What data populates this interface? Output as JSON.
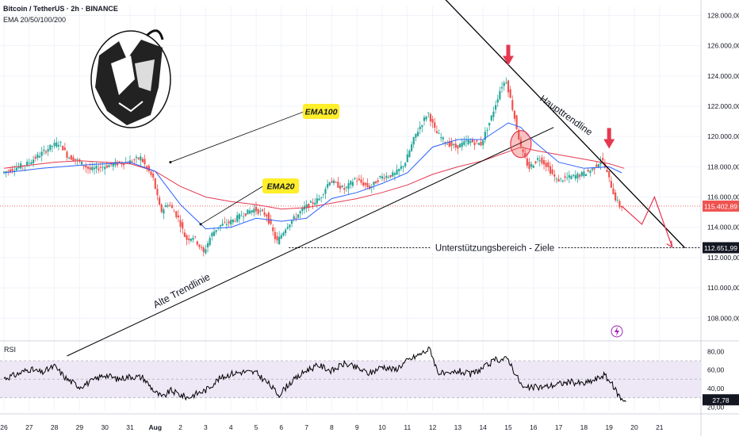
{
  "header": {
    "symbol": "Bitcoin / TetherUS · 2h · BINANCE",
    "indicators": "EMA 20/50/100/200"
  },
  "annotations": {
    "ema100_label": "EMA100",
    "ema20_label": "EMA20",
    "main_trendline": "Haupttrendline",
    "old_trendline": "Alte Trendlinie",
    "support_zone": "Unterstützungsbereich - Ziele"
  },
  "price_tags": {
    "current": "115.402,89",
    "target": "112.651,99"
  },
  "rsi": {
    "label": "RSI",
    "current": "27,78",
    "y_ticks": [
      "80,00",
      "60,00",
      "40,00",
      "20,00"
    ]
  },
  "colors": {
    "up_candle": "#26a69a",
    "down_candle": "#ef5350",
    "ema20": "#2962ff",
    "ema100": "#e53950",
    "arrow": "#e53950",
    "label_bg": "#ffee2a",
    "rsi_line": "#000000",
    "rsi_band": "#ede7f6"
  },
  "chart_data": {
    "type": "candlestick",
    "x_ticks": [
      "26",
      "27",
      "28",
      "29",
      "30",
      "31",
      "Aug",
      "2",
      "3",
      "4",
      "5",
      "6",
      "7",
      "8",
      "9",
      "10",
      "11",
      "12",
      "13",
      "14",
      "15",
      "16",
      "17",
      "18",
      "19",
      "20",
      "21"
    ],
    "y_ticks": [
      "128.000,00",
      "126.000,00",
      "124.000,00",
      "122.000,00",
      "120.000,00",
      "118.000,00",
      "116.000,00",
      "114.000,00",
      "112.000,00",
      "110.000,00",
      "108.000,00"
    ],
    "ylim": [
      106600,
      128600
    ],
    "xlim_days": [
      -0.2,
      27.0
    ],
    "price_anchors": [
      [
        0.0,
        117600
      ],
      [
        0.5,
        117900
      ],
      [
        1.0,
        118200
      ],
      [
        1.5,
        118800
      ],
      [
        2.0,
        119400
      ],
      [
        2.3,
        119600
      ],
      [
        2.6,
        118700
      ],
      [
        3.0,
        118400
      ],
      [
        3.5,
        117800
      ],
      [
        4.0,
        118000
      ],
      [
        4.5,
        118200
      ],
      [
        5.0,
        118300
      ],
      [
        5.5,
        118600
      ],
      [
        6.0,
        117200
      ],
      [
        6.3,
        115000
      ],
      [
        6.6,
        115600
      ],
      [
        7.0,
        114600
      ],
      [
        7.3,
        113200
      ],
      [
        7.6,
        113400
      ],
      [
        8.0,
        112300
      ],
      [
        8.3,
        113500
      ],
      [
        8.6,
        114100
      ],
      [
        9.0,
        114300
      ],
      [
        9.5,
        114800
      ],
      [
        10.0,
        115200
      ],
      [
        10.5,
        114800
      ],
      [
        10.9,
        113000
      ],
      [
        11.3,
        114100
      ],
      [
        11.6,
        114600
      ],
      [
        12.0,
        115300
      ],
      [
        12.6,
        115900
      ],
      [
        13.0,
        117100
      ],
      [
        13.6,
        116500
      ],
      [
        14.0,
        117200
      ],
      [
        14.6,
        116600
      ],
      [
        15.0,
        117300
      ],
      [
        15.6,
        117500
      ],
      [
        16.0,
        118300
      ],
      [
        16.4,
        120100
      ],
      [
        16.9,
        121600
      ],
      [
        17.2,
        120300
      ],
      [
        17.6,
        119600
      ],
      [
        18.0,
        119300
      ],
      [
        18.5,
        119700
      ],
      [
        19.0,
        119500
      ],
      [
        19.4,
        121200
      ],
      [
        19.8,
        123300
      ],
      [
        20.0,
        123700
      ],
      [
        20.3,
        121500
      ],
      [
        20.6,
        119100
      ],
      [
        20.9,
        117900
      ],
      [
        21.3,
        118600
      ],
      [
        21.6,
        118100
      ],
      [
        22.0,
        117100
      ],
      [
        22.5,
        117300
      ],
      [
        23.0,
        117500
      ],
      [
        23.4,
        117800
      ],
      [
        23.8,
        118500
      ],
      [
        24.1,
        117100
      ],
      [
        24.3,
        116000
      ],
      [
        24.5,
        115400
      ]
    ],
    "ema20": [
      [
        0.0,
        117600
      ],
      [
        1.5,
        117900
      ],
      [
        3.0,
        118100
      ],
      [
        5.0,
        118300
      ],
      [
        6.0,
        117700
      ],
      [
        7.0,
        115500
      ],
      [
        8.0,
        113900
      ],
      [
        9.0,
        114000
      ],
      [
        10.0,
        114600
      ],
      [
        11.0,
        114400
      ],
      [
        12.0,
        114600
      ],
      [
        13.0,
        115900
      ],
      [
        14.0,
        116300
      ],
      [
        15.0,
        116900
      ],
      [
        16.0,
        117600
      ],
      [
        17.0,
        119300
      ],
      [
        18.0,
        119800
      ],
      [
        19.0,
        119800
      ],
      [
        20.0,
        120900
      ],
      [
        20.5,
        120600
      ],
      [
        21.0,
        119700
      ],
      [
        22.0,
        118300
      ],
      [
        23.0,
        117900
      ],
      [
        24.0,
        118000
      ],
      [
        24.5,
        117600
      ]
    ],
    "ema100": [
      [
        0.0,
        117900
      ],
      [
        2.0,
        118300
      ],
      [
        3.0,
        118400
      ],
      [
        4.0,
        118300
      ],
      [
        5.0,
        118200
      ],
      [
        6.0,
        117700
      ],
      [
        7.0,
        116700
      ],
      [
        8.0,
        116000
      ],
      [
        9.0,
        115700
      ],
      [
        10.0,
        115500
      ],
      [
        11.0,
        115200
      ],
      [
        12.0,
        115300
      ],
      [
        13.0,
        115600
      ],
      [
        14.0,
        115900
      ],
      [
        15.0,
        116300
      ],
      [
        16.0,
        116800
      ],
      [
        17.0,
        117500
      ],
      [
        18.0,
        118000
      ],
      [
        19.0,
        118400
      ],
      [
        20.0,
        119000
      ],
      [
        20.5,
        119300
      ],
      [
        21.0,
        119100
      ],
      [
        22.0,
        118800
      ],
      [
        23.0,
        118500
      ],
      [
        24.0,
        118200
      ],
      [
        24.6,
        117900
      ]
    ],
    "rsi": [
      [
        0.0,
        51
      ],
      [
        0.5,
        55
      ],
      [
        1.0,
        61
      ],
      [
        1.5,
        57
      ],
      [
        2.0,
        64
      ],
      [
        2.5,
        50
      ],
      [
        3.0,
        42
      ],
      [
        3.5,
        48
      ],
      [
        4.0,
        55
      ],
      [
        4.5,
        50
      ],
      [
        5.0,
        53
      ],
      [
        5.5,
        52
      ],
      [
        6.0,
        36
      ],
      [
        6.3,
        30
      ],
      [
        6.6,
        38
      ],
      [
        7.0,
        33
      ],
      [
        7.3,
        30
      ],
      [
        7.6,
        34
      ],
      [
        8.0,
        38
      ],
      [
        8.5,
        50
      ],
      [
        9.0,
        56
      ],
      [
        9.5,
        58
      ],
      [
        10.0,
        57
      ],
      [
        10.5,
        45
      ],
      [
        10.9,
        33
      ],
      [
        11.3,
        45
      ],
      [
        11.7,
        53
      ],
      [
        12.0,
        60
      ],
      [
        12.5,
        65
      ],
      [
        13.0,
        59
      ],
      [
        13.5,
        67
      ],
      [
        14.0,
        62
      ],
      [
        14.5,
        56
      ],
      [
        15.0,
        64
      ],
      [
        15.5,
        60
      ],
      [
        16.0,
        70
      ],
      [
        16.5,
        77
      ],
      [
        16.9,
        83
      ],
      [
        17.2,
        58
      ],
      [
        17.6,
        54
      ],
      [
        18.0,
        59
      ],
      [
        18.5,
        55
      ],
      [
        19.0,
        62
      ],
      [
        19.5,
        71
      ],
      [
        20.0,
        72
      ],
      [
        20.3,
        55
      ],
      [
        20.6,
        40
      ],
      [
        21.0,
        41
      ],
      [
        21.5,
        42
      ],
      [
        22.0,
        45
      ],
      [
        22.5,
        47
      ],
      [
        23.0,
        45
      ],
      [
        23.5,
        50
      ],
      [
        23.8,
        55
      ],
      [
        24.1,
        45
      ],
      [
        24.3,
        36
      ],
      [
        24.5,
        28
      ],
      [
        24.7,
        28
      ]
    ],
    "rsi_ylim": [
      16,
      88
    ],
    "rsi_band": [
      30,
      70
    ],
    "trendlines": {
      "main": [
        [
          15.8,
          132000
        ],
        [
          27.0,
          112650
        ]
      ],
      "old": [
        [
          2.5,
          105500
        ],
        [
          21.8,
          120600
        ]
      ]
    },
    "support_level": 112651.99,
    "current_price": 115402.89,
    "projection": [
      [
        24.5,
        115400
      ],
      [
        25.3,
        114200
      ],
      [
        25.8,
        116000
      ],
      [
        26.5,
        112700
      ]
    ]
  }
}
